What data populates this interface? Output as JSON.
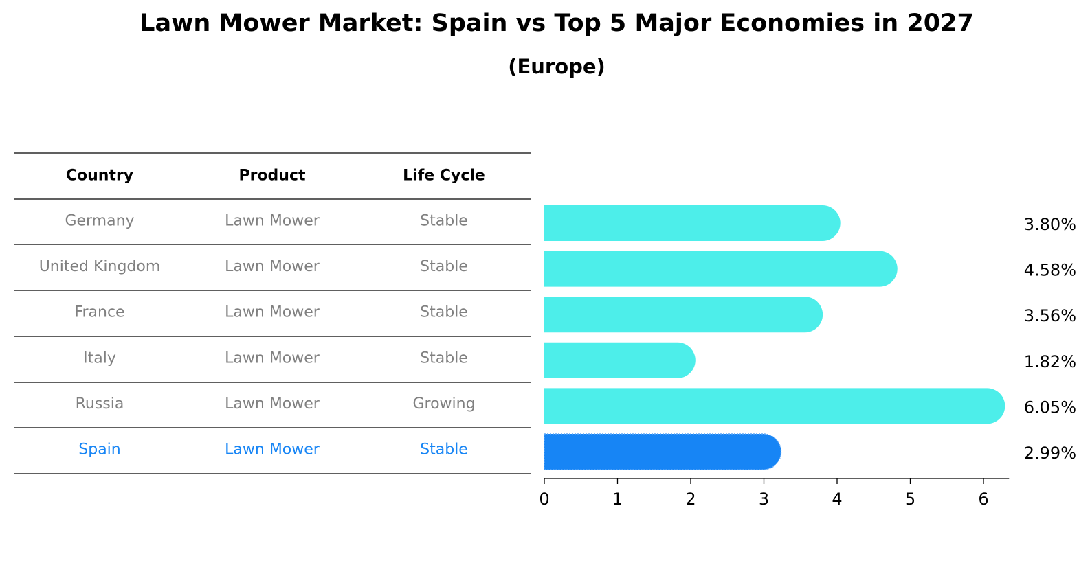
{
  "chart_data": {
    "type": "bar",
    "orientation": "horizontal",
    "title": "Lawn Mower Market: Spain vs Top 5 Major Economies in 2027",
    "subtitle": "(Europe)",
    "table": {
      "columns": [
        "Country",
        "Product",
        "Life Cycle"
      ],
      "rows": [
        {
          "country": "Germany",
          "product": "Lawn Mower",
          "life_cycle": "Stable"
        },
        {
          "country": "United Kingdom",
          "product": "Lawn Mower",
          "life_cycle": "Stable"
        },
        {
          "country": "France",
          "product": "Lawn Mower",
          "life_cycle": "Stable"
        },
        {
          "country": "Italy",
          "product": "Lawn Mower",
          "life_cycle": "Stable"
        },
        {
          "country": "Russia",
          "product": "Lawn Mower",
          "life_cycle": "Growing"
        },
        {
          "country": "Spain",
          "product": "Lawn Mower",
          "life_cycle": "Stable"
        }
      ]
    },
    "categories": [
      "Germany",
      "United Kingdom",
      "France",
      "Italy",
      "Russia",
      "Spain"
    ],
    "values": [
      3.8,
      4.58,
      3.56,
      1.82,
      6.05,
      2.99
    ],
    "value_labels": [
      "3.80%",
      "4.58%",
      "3.56%",
      "1.82%",
      "6.05%",
      "2.99%"
    ],
    "highlight": "Spain",
    "xlim": [
      0,
      6.35
    ],
    "xticks": [
      0,
      1,
      2,
      3,
      4,
      5,
      6
    ],
    "xlabel": "",
    "ylabel": "",
    "grid": false,
    "colors": {
      "bar": "#4deeea",
      "highlight_bar": "#1785f5",
      "text": "#808080",
      "highlight_text": "#1785f5",
      "header": "#000000"
    }
  }
}
